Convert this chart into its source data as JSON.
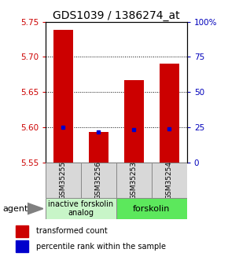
{
  "title": "GDS1039 / 1386274_at",
  "samples": [
    "GSM35255",
    "GSM35256",
    "GSM35253",
    "GSM35254"
  ],
  "red_values": [
    5.738,
    5.593,
    5.667,
    5.69
  ],
  "blue_values": [
    5.6,
    5.594,
    5.597,
    5.598
  ],
  "ylim": [
    5.55,
    5.75
  ],
  "yticks_left": [
    5.55,
    5.6,
    5.65,
    5.7,
    5.75
  ],
  "yticks_right": [
    0,
    25,
    50,
    75,
    100
  ],
  "yticks_right_labels": [
    "0",
    "25",
    "50",
    "75",
    "100%"
  ],
  "gridlines": [
    5.6,
    5.65,
    5.7
  ],
  "bar_bottom": 5.55,
  "bar_width": 0.55,
  "group1_label": "inactive forskolin\nanalog",
  "group2_label": "forskolin",
  "group1_color": "#c8f5c8",
  "group2_color": "#5ce85c",
  "agent_label": "agent",
  "legend_red": "transformed count",
  "legend_blue": "percentile rank within the sample",
  "red_color": "#cc0000",
  "blue_color": "#0000cc",
  "left_tick_color": "#cc0000",
  "right_tick_color": "#0000bb",
  "title_fontsize": 10,
  "tick_fontsize": 7.5,
  "sample_fontsize": 6.5,
  "group_fontsize": 7,
  "legend_fontsize": 7,
  "agent_fontsize": 8
}
